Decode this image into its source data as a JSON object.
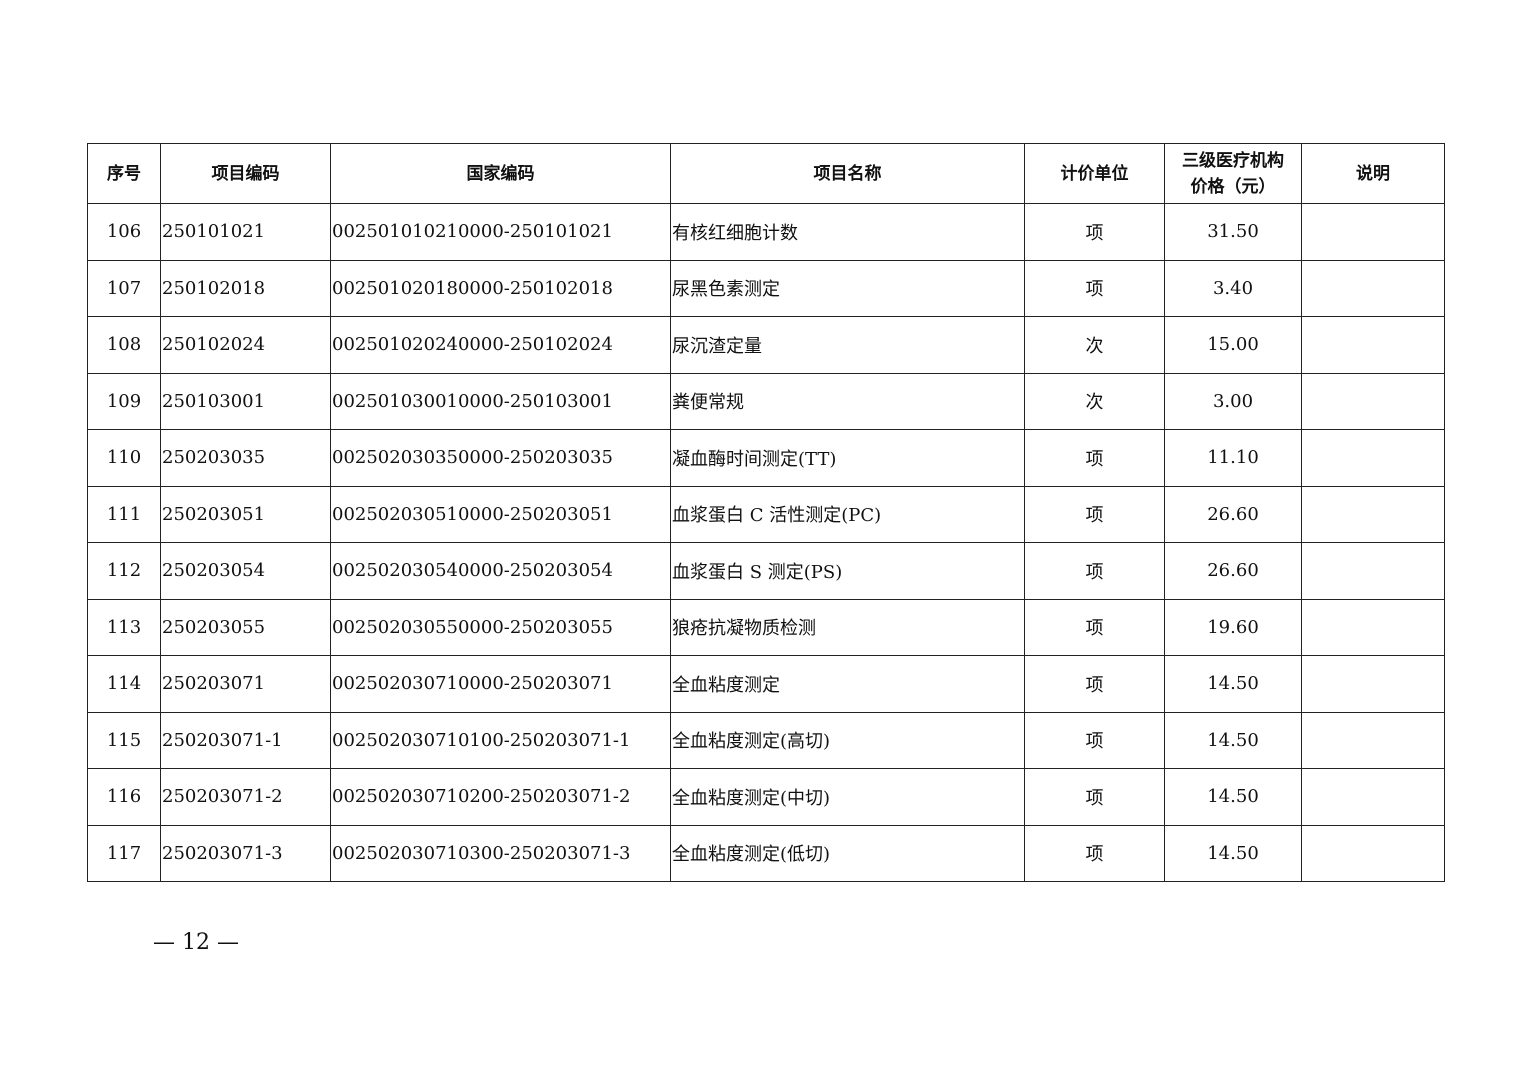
{
  "table": {
    "headers": [
      "序号",
      "项目编码",
      "国家编码",
      "项目名称",
      "计价单位",
      "三级医疗机构价格（元）",
      "说明"
    ],
    "header_price_line1": "三级医疗机构",
    "header_price_line2": "价格（元）",
    "rows": [
      [
        "106",
        "250101021",
        "002501010210000-250101021",
        "有核红细胞计数",
        "项",
        "31.50",
        ""
      ],
      [
        "107",
        "250102018",
        "002501020180000-250102018",
        "尿黑色素测定",
        "项",
        "3.40",
        ""
      ],
      [
        "108",
        "250102024",
        "002501020240000-250102024",
        "尿沉渣定量",
        "次",
        "15.00",
        ""
      ],
      [
        "109",
        "250103001",
        "002501030010000-250103001",
        "粪便常规",
        "次",
        "3.00",
        ""
      ],
      [
        "110",
        "250203035",
        "002502030350000-250203035",
        "凝血酶时间测定(TT)",
        "项",
        "11.10",
        ""
      ],
      [
        "111",
        "250203051",
        "002502030510000-250203051",
        "血浆蛋白 C 活性测定(PC)",
        "项",
        "26.60",
        ""
      ],
      [
        "112",
        "250203054",
        "002502030540000-250203054",
        "血浆蛋白 S 测定(PS)",
        "项",
        "26.60",
        ""
      ],
      [
        "113",
        "250203055",
        "002502030550000-250203055",
        "狼疮抗凝物质检测",
        "项",
        "19.60",
        ""
      ],
      [
        "114",
        "250203071",
        "002502030710000-250203071",
        "全血粘度测定",
        "项",
        "14.50",
        ""
      ],
      [
        "115",
        "250203071-1",
        "002502030710100-250203071-1",
        "全血粘度测定(高切)",
        "项",
        "14.50",
        ""
      ],
      [
        "116",
        "250203071-2",
        "002502030710200-250203071-2",
        "全血粘度测定(中切)",
        "项",
        "14.50",
        ""
      ],
      [
        "117",
        "250203071-3",
        "002502030710300-250203071-3",
        "全血粘度测定(低切)",
        "项",
        "14.50",
        ""
      ]
    ]
  },
  "page_number": "— 12 —"
}
